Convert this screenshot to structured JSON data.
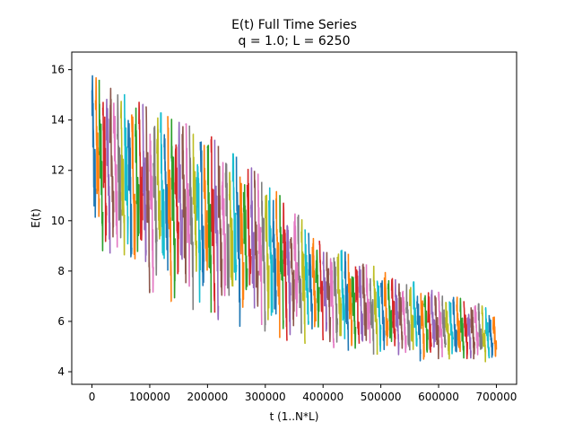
{
  "chart_data": {
    "type": "line",
    "title": "E(t) Full Time Series",
    "subtitle": "q = 1.0; L = 6250",
    "xlabel": "t (1..N*L)",
    "ylabel": "E(t)",
    "xlim": [
      -35000,
      735000
    ],
    "ylim": [
      3.5,
      16.7
    ],
    "xticks": [
      0,
      100000,
      200000,
      300000,
      400000,
      500000,
      600000,
      700000
    ],
    "yticks": [
      4,
      6,
      8,
      10,
      12,
      14,
      16
    ],
    "grid": false,
    "legend": "none",
    "segment_length": 6250,
    "segment_count": 112,
    "colors": [
      "#1f77b4",
      "#ff7f0e",
      "#2ca02c",
      "#d62728",
      "#9467bd",
      "#8c564b",
      "#e377c2",
      "#7f7f7f",
      "#bcbd22",
      "#17becf"
    ],
    "envelope": {
      "x": [
        0,
        100000,
        200000,
        300000,
        400000,
        500000,
        600000,
        700000
      ],
      "upper": [
        15.6,
        14.3,
        13.3,
        11.5,
        9.0,
        7.9,
        7.0,
        6.3
      ],
      "lower": [
        8.8,
        7.3,
        6.4,
        5.6,
        5.1,
        4.6,
        4.4,
        4.3
      ]
    }
  }
}
